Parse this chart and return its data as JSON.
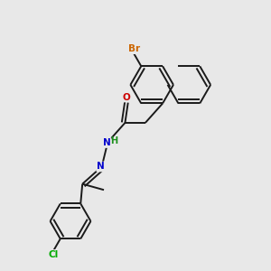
{
  "background_color": "#e8e8e8",
  "bond_color": "#1a1a1a",
  "atom_colors": {
    "Br": "#cc6600",
    "Cl": "#00aa00",
    "O": "#cc0000",
    "N": "#0000cc",
    "H": "#1a8f1a",
    "C": "#1a1a1a"
  },
  "figsize": [
    3.0,
    3.0
  ],
  "dpi": 100
}
